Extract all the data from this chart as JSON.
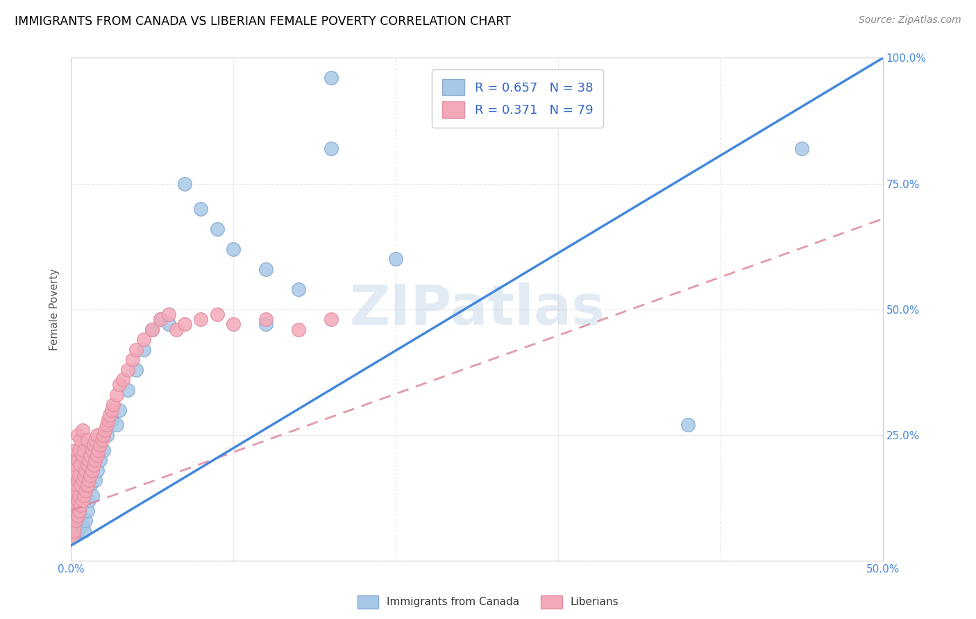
{
  "title": "IMMIGRANTS FROM CANADA VS LIBERIAN FEMALE POVERTY CORRELATION CHART",
  "source": "Source: ZipAtlas.com",
  "ylabel": "Female Poverty",
  "legend_label_blue": "Immigrants from Canada",
  "legend_label_pink": "Liberians",
  "blue_color": "#a8c8e8",
  "pink_color": "#f4a8b8",
  "blue_line_color": "#4488dd",
  "pink_line_color": "#dd8899",
  "watermark": "ZIPatlas",
  "title_fontsize": 12.5,
  "blue_r": 0.657,
  "blue_n": 38,
  "pink_r": 0.371,
  "pink_n": 79,
  "blue_points_x": [
    0.002,
    0.003,
    0.004,
    0.005,
    0.006,
    0.007,
    0.008,
    0.009,
    0.01,
    0.011,
    0.012,
    0.013,
    0.015,
    0.016,
    0.018,
    0.02,
    0.022,
    0.025,
    0.028,
    0.03,
    0.035,
    0.04,
    0.045,
    0.05,
    0.055,
    0.06,
    0.07,
    0.08,
    0.09,
    0.1,
    0.12,
    0.14,
    0.16,
    0.2,
    0.38,
    0.45,
    0.16,
    0.12
  ],
  "blue_points_y": [
    0.05,
    0.08,
    0.06,
    0.1,
    0.09,
    0.07,
    0.06,
    0.08,
    0.1,
    0.12,
    0.15,
    0.13,
    0.16,
    0.18,
    0.2,
    0.22,
    0.25,
    0.28,
    0.27,
    0.3,
    0.34,
    0.38,
    0.42,
    0.46,
    0.48,
    0.47,
    0.75,
    0.7,
    0.66,
    0.62,
    0.58,
    0.54,
    0.82,
    0.6,
    0.27,
    0.82,
    0.96,
    0.47
  ],
  "pink_points_x": [
    0.001,
    0.001,
    0.001,
    0.001,
    0.002,
    0.002,
    0.002,
    0.002,
    0.002,
    0.003,
    0.003,
    0.003,
    0.003,
    0.003,
    0.004,
    0.004,
    0.004,
    0.004,
    0.004,
    0.005,
    0.005,
    0.005,
    0.005,
    0.006,
    0.006,
    0.006,
    0.006,
    0.007,
    0.007,
    0.007,
    0.007,
    0.008,
    0.008,
    0.008,
    0.009,
    0.009,
    0.01,
    0.01,
    0.01,
    0.011,
    0.011,
    0.012,
    0.012,
    0.013,
    0.013,
    0.014,
    0.014,
    0.015,
    0.015,
    0.016,
    0.016,
    0.017,
    0.018,
    0.019,
    0.02,
    0.021,
    0.022,
    0.023,
    0.024,
    0.025,
    0.026,
    0.028,
    0.03,
    0.032,
    0.035,
    0.038,
    0.04,
    0.045,
    0.05,
    0.055,
    0.06,
    0.065,
    0.07,
    0.08,
    0.09,
    0.1,
    0.12,
    0.14,
    0.16
  ],
  "pink_points_y": [
    0.05,
    0.08,
    0.12,
    0.15,
    0.06,
    0.09,
    0.13,
    0.17,
    0.2,
    0.08,
    0.11,
    0.15,
    0.19,
    0.22,
    0.09,
    0.12,
    0.16,
    0.2,
    0.25,
    0.1,
    0.13,
    0.17,
    0.22,
    0.11,
    0.15,
    0.19,
    0.24,
    0.12,
    0.16,
    0.21,
    0.26,
    0.13,
    0.17,
    0.22,
    0.14,
    0.18,
    0.15,
    0.19,
    0.24,
    0.16,
    0.2,
    0.17,
    0.21,
    0.18,
    0.22,
    0.19,
    0.23,
    0.2,
    0.24,
    0.21,
    0.25,
    0.22,
    0.23,
    0.24,
    0.25,
    0.26,
    0.27,
    0.28,
    0.29,
    0.3,
    0.31,
    0.33,
    0.35,
    0.36,
    0.38,
    0.4,
    0.42,
    0.44,
    0.46,
    0.48,
    0.49,
    0.46,
    0.47,
    0.48,
    0.49,
    0.47,
    0.48,
    0.46,
    0.48
  ]
}
